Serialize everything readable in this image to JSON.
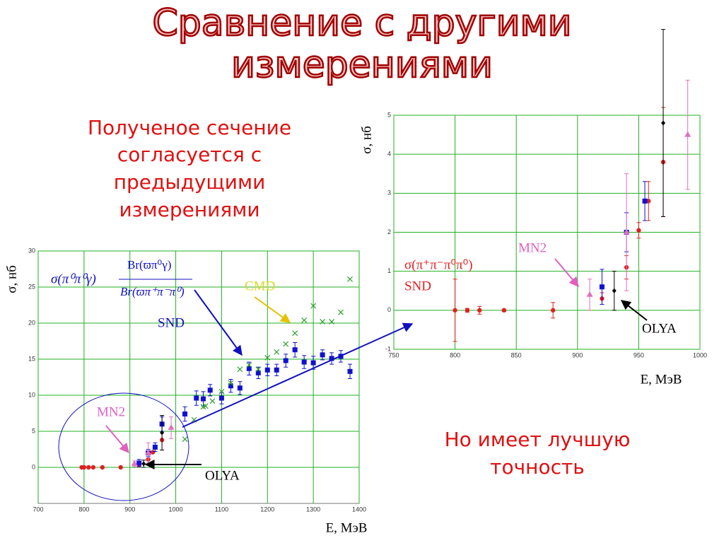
{
  "title": [
    "Сравнение с другими",
    "измерениями"
  ],
  "statement": [
    "Полученое сечение",
    "согласуется с",
    "предыдущими",
    "измерениями"
  ],
  "conclusion": [
    "Но имеет лучшую",
    "точность"
  ],
  "chart_data": [
    {
      "type": "scatter",
      "xlabel": "Е, МэВ",
      "ylabel": "σ, нб",
      "xlim": [
        700,
        1400
      ],
      "xticks": [
        700,
        800,
        900,
        1000,
        1100,
        1200,
        1300,
        1400
      ],
      "ylim": [
        -5,
        30
      ],
      "yticks": [
        0,
        5,
        10,
        15,
        20,
        25,
        30
      ],
      "grid": true,
      "annotations": [
        {
          "text": "σ(π⁰π⁰γ)",
          "color": "#1010c0"
        },
        {
          "text": "Br(ϖπ⁰γ)",
          "color": "#1010c0"
        },
        {
          "text": "Br(ϖπ⁺π⁻π⁰)",
          "color": "#1010c0"
        },
        {
          "text": "CMD",
          "color": "#d8d820"
        },
        {
          "text": "SND",
          "color": "#1010c0"
        },
        {
          "text": "MN2",
          "color": "#e060c0"
        },
        {
          "text": "OLYA",
          "color": "#000000"
        }
      ],
      "series": [
        {
          "color": "#e02020",
          "marker": "circle",
          "x": [
            795,
            800,
            810,
            820,
            840,
            880,
            920,
            940,
            950,
            955,
            970
          ],
          "values": [
            0,
            0,
            0,
            0,
            0,
            0,
            0.3,
            1.1,
            2.1,
            2.8,
            3.8
          ]
        },
        {
          "color": "#1010d0",
          "marker": "square",
          "x": [
            920,
            940,
            955,
            970,
            1020,
            1045,
            1060,
            1075,
            1100,
            1120,
            1140,
            1160,
            1180,
            1200,
            1220,
            1240,
            1260,
            1280,
            1300,
            1320,
            1340,
            1360,
            1380
          ],
          "values": [
            0.6,
            2.0,
            2.8,
            6.0,
            7.4,
            9.6,
            9.5,
            10.7,
            9.6,
            11.3,
            11.0,
            13.7,
            13.1,
            13.5,
            13.5,
            14.8,
            16.3,
            14.6,
            14.5,
            15.6,
            15.1,
            15.4,
            13.3
          ],
          "errors": [
            0.5,
            0.5,
            0.6,
            1.0,
            1.0,
            1.0,
            1.0,
            0.8,
            0.8,
            0.9,
            0.9,
            0.9,
            0.8,
            0.8,
            0.8,
            0.9,
            1.0,
            0.9,
            0.9,
            0.7,
            0.8,
            0.8,
            1.0
          ]
        },
        {
          "color": "#30a030",
          "marker": "x",
          "x": [
            1020,
            1040,
            1060,
            1065,
            1080,
            1100,
            1120,
            1140,
            1160,
            1180,
            1200,
            1220,
            1240,
            1260,
            1280,
            1300,
            1320,
            1340,
            1360,
            1380
          ],
          "values": [
            3.9,
            6.6,
            8.4,
            8.5,
            9.2,
            10.5,
            11.7,
            13.6,
            14.2,
            13.6,
            15.2,
            16.0,
            17.1,
            18.6,
            20.4,
            22.4,
            20.2,
            20.2,
            21.5,
            26.1
          ]
        },
        {
          "color": "#e070c0",
          "marker": "triangle",
          "x": [
            910,
            940,
            990
          ],
          "values": [
            0.5,
            2.0,
            5.5
          ],
          "errors": [
            0.4,
            1.4,
            1.5
          ]
        },
        {
          "color": "#000000",
          "marker": "diamond",
          "x": [
            930,
            970
          ],
          "values": [
            0.5,
            4.8
          ],
          "errors": [
            0.5,
            2.4
          ]
        }
      ]
    },
    {
      "type": "scatter",
      "xlabel": "Е, МэВ",
      "ylabel": "σ, нб",
      "xlim": [
        750,
        1000
      ],
      "xticks": [
        750,
        800,
        850,
        900,
        950,
        1000
      ],
      "ylim": [
        -1,
        5
      ],
      "yticks": [
        -1,
        0,
        1,
        2,
        3,
        4,
        5
      ],
      "grid": true,
      "annotations": [
        {
          "text": "σ(π⁺π⁻π⁰π⁰)",
          "color": "#e02020"
        },
        {
          "text": "SND",
          "color": "#e02020"
        },
        {
          "text": "MN2",
          "color": "#e060c0"
        },
        {
          "text": "OLYA",
          "color": "#000000"
        }
      ],
      "series": [
        {
          "color": "#e02020",
          "marker": "circle",
          "x": [
            800,
            810,
            820,
            840,
            880,
            920,
            940,
            950,
            958,
            970
          ],
          "values": [
            0,
            0,
            0,
            0,
            0,
            0.3,
            1.1,
            2.05,
            2.8,
            3.8
          ],
          "errors": [
            0.8,
            0.05,
            0.1,
            0.03,
            0.2,
            0.15,
            0.3,
            0.2,
            0.5,
            1.4
          ]
        },
        {
          "color": "#1010d0",
          "marker": "square",
          "x": [
            920,
            940,
            955
          ],
          "values": [
            0.6,
            2.0,
            2.8
          ],
          "errors": [
            0.45,
            0.5,
            0.5
          ]
        },
        {
          "color": "#e070c0",
          "marker": "triangle",
          "x": [
            910,
            940,
            990
          ],
          "values": [
            0.4,
            2.0,
            4.5
          ],
          "errors": [
            0.4,
            1.5,
            1.4
          ]
        },
        {
          "color": "#000000",
          "marker": "diamond",
          "x": [
            930,
            970
          ],
          "values": [
            0.5,
            4.8
          ],
          "errors": [
            0.5,
            2.4
          ]
        }
      ]
    }
  ]
}
